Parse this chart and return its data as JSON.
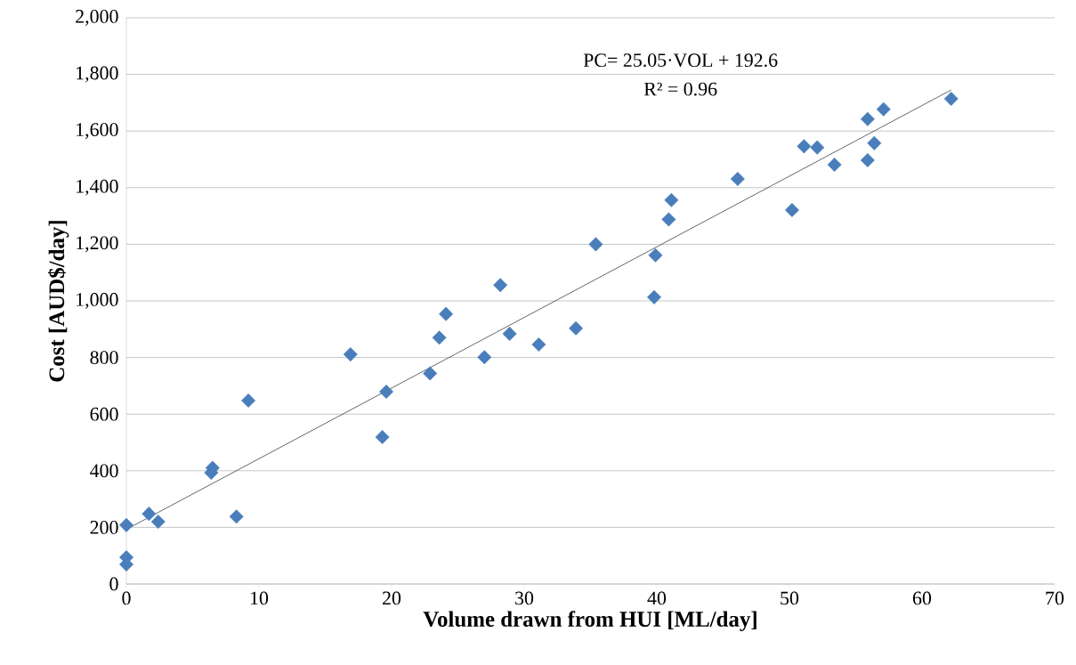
{
  "chart_data": {
    "type": "scatter",
    "xlabel": "Volume drawn from HUI [ML/day]",
    "ylabel": "Cost [AUD$/day]",
    "annotations": [
      "PC= 25.05·VOL + 192.6",
      "R² = 0.96"
    ],
    "series": [
      {
        "color": "#4a7ebb",
        "marker": "diamond",
        "x": [
          0,
          0,
          0,
          1.7,
          2.4,
          6.4,
          6.5,
          8.3,
          9.2,
          16.9,
          19.6,
          19.3,
          22.9,
          23.6,
          24.1,
          27.0,
          28.2,
          28.9,
          31.1,
          33.9,
          35.4,
          39.8,
          39.9,
          40.9,
          41.1,
          46.1,
          50.2,
          51.1,
          52.1,
          53.4,
          55.9,
          55.9,
          56.4,
          57.1,
          62.2
        ],
        "values": [
          69,
          94,
          208,
          248,
          220,
          393,
          410,
          238,
          648,
          811,
          679,
          519,
          744,
          870,
          954,
          801,
          1056,
          884,
          846,
          903,
          1200,
          1013,
          1161,
          1288,
          1356,
          1431,
          1321,
          1546,
          1542,
          1481,
          1497,
          1642,
          1557,
          1677,
          1714
        ]
      },
      {
        "type": "line",
        "color": "#404040",
        "marker": "none",
        "x": [
          0,
          62.2
        ],
        "values": [
          193,
          1745
        ]
      }
    ],
    "xlim": [
      0,
      70
    ],
    "ylim": [
      0,
      2000
    ],
    "xticks": [
      0,
      10,
      20,
      30,
      40,
      50,
      60,
      70
    ],
    "yticks": [
      0,
      200,
      400,
      600,
      800,
      {
        "value": 1000,
        "label": "1,000"
      },
      {
        "value": 1200,
        "label": "1,200"
      },
      {
        "value": 1400,
        "label": "1,400"
      },
      {
        "value": 1600,
        "label": "1,600"
      },
      {
        "value": 1800,
        "label": "1,800"
      },
      {
        "value": 2000,
        "label": "2,000"
      }
    ],
    "grid": "y"
  }
}
